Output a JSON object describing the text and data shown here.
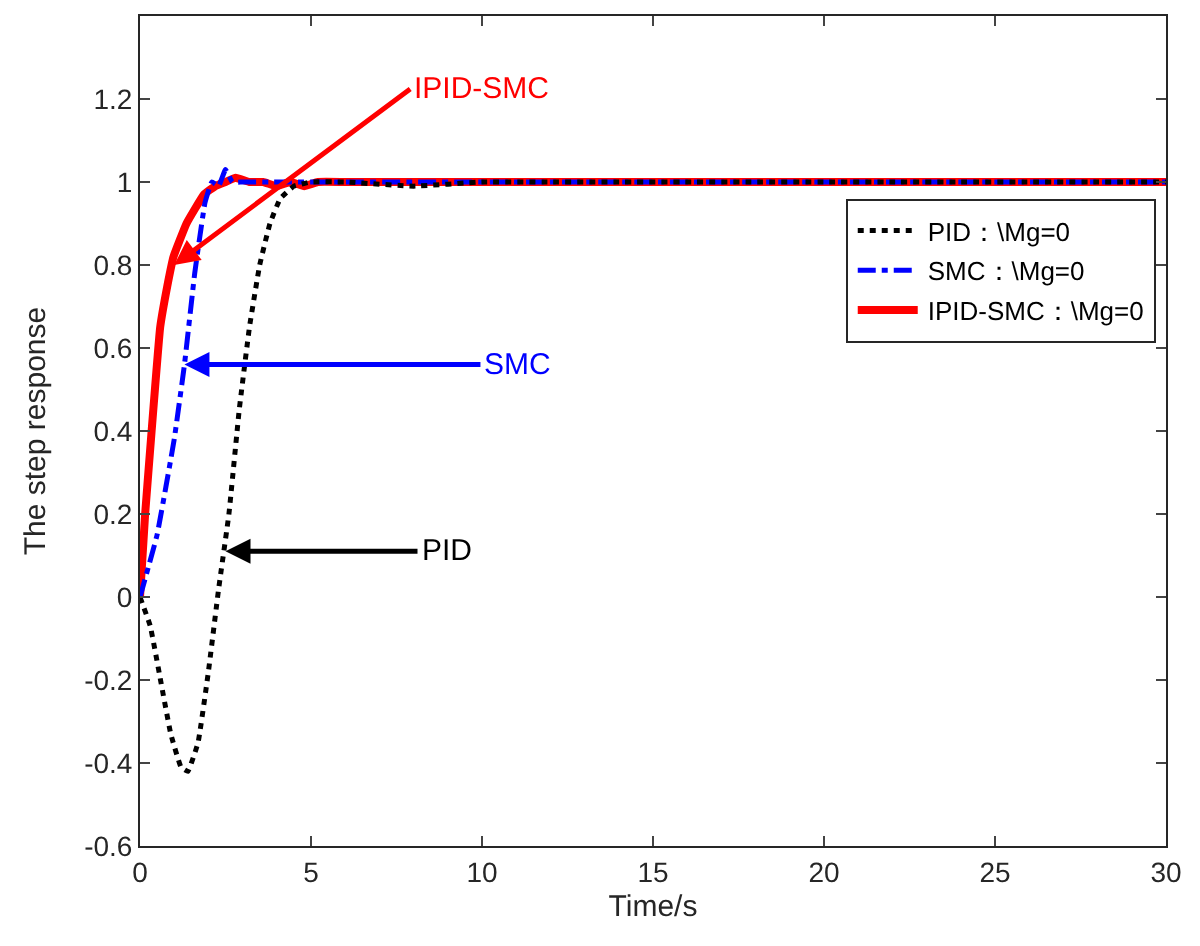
{
  "chart_data": {
    "type": "line",
    "xlabel": "Time/s",
    "ylabel": "The step response",
    "xlim": [
      0,
      30
    ],
    "ylim": [
      -0.6,
      1.4
    ],
    "xticks": [
      0,
      5,
      10,
      15,
      20,
      25,
      30
    ],
    "yticks": [
      -0.6,
      -0.4,
      -0.2,
      0,
      0.2,
      0.4,
      0.6,
      0.8,
      1,
      1.2
    ],
    "legend": "top right",
    "marker": "none",
    "series": [
      {
        "name": "PID：\\Mg=0",
        "color": "#000000",
        "line_style": "dotted",
        "x": [
          0,
          0.3,
          0.6,
          0.9,
          1.2,
          1.4,
          1.7,
          2.0,
          2.3,
          2.6,
          2.9,
          3.2,
          3.5,
          3.8,
          4.1,
          4.5,
          5,
          6,
          8,
          10,
          12,
          14,
          16,
          18,
          20,
          22,
          24,
          26,
          28,
          30
        ],
        "values": [
          0,
          -0.07,
          -0.2,
          -0.33,
          -0.41,
          -0.42,
          -0.35,
          -0.18,
          0.02,
          0.2,
          0.45,
          0.65,
          0.8,
          0.9,
          0.96,
          0.99,
          1.0,
          1.0,
          0.99,
          1.0,
          1.0,
          1.0,
          1.0,
          1.0,
          1.0,
          1.0,
          1.0,
          1.0,
          1.0,
          1.0
        ]
      },
      {
        "name": "SMC：\\Mg=0",
        "color": "#0000ff",
        "line_style": "dashed",
        "x": [
          0,
          0.5,
          1.0,
          1.3,
          1.6,
          1.9,
          2.1,
          2.3,
          2.5,
          2.7,
          3,
          4,
          6,
          8,
          10,
          15,
          20,
          25,
          30
        ],
        "values": [
          0,
          0.15,
          0.38,
          0.56,
          0.78,
          0.95,
          1.0,
          0.99,
          1.03,
          1.0,
          1.0,
          1.0,
          1.0,
          1.0,
          1.0,
          1.0,
          1.0,
          1.0,
          1.0
        ]
      },
      {
        "name": "IPID-SMC：\\Mg=0",
        "color": "#ff0000",
        "line_style": "solid",
        "x": [
          0,
          0.15,
          0.34,
          0.59,
          0.8,
          0.98,
          1.36,
          1.87,
          2.2,
          2.5,
          2.8,
          3.2,
          3.6,
          4.0,
          4.4,
          4.8,
          5.2,
          6,
          7,
          8,
          10,
          12,
          14,
          16,
          18,
          20,
          22,
          24,
          26,
          28,
          30
        ],
        "values": [
          0,
          0.2,
          0.4,
          0.65,
          0.75,
          0.82,
          0.9,
          0.97,
          0.99,
          1.0,
          1.01,
          1.0,
          1.0,
          0.99,
          1.0,
          0.99,
          1.0,
          1.0,
          1.0,
          1.0,
          1.0,
          1.0,
          1.0,
          1.0,
          1.0,
          1.0,
          1.0,
          1.0,
          1.0,
          1.0,
          1.0
        ]
      }
    ],
    "annotations": [
      {
        "text": "PID",
        "x": 2.5,
        "y": 0.11
      },
      {
        "text": "SMC",
        "x": 1.3,
        "y": 0.56
      },
      {
        "text": "IPID-SMC",
        "x": 1.0,
        "y": 0.8
      }
    ]
  }
}
